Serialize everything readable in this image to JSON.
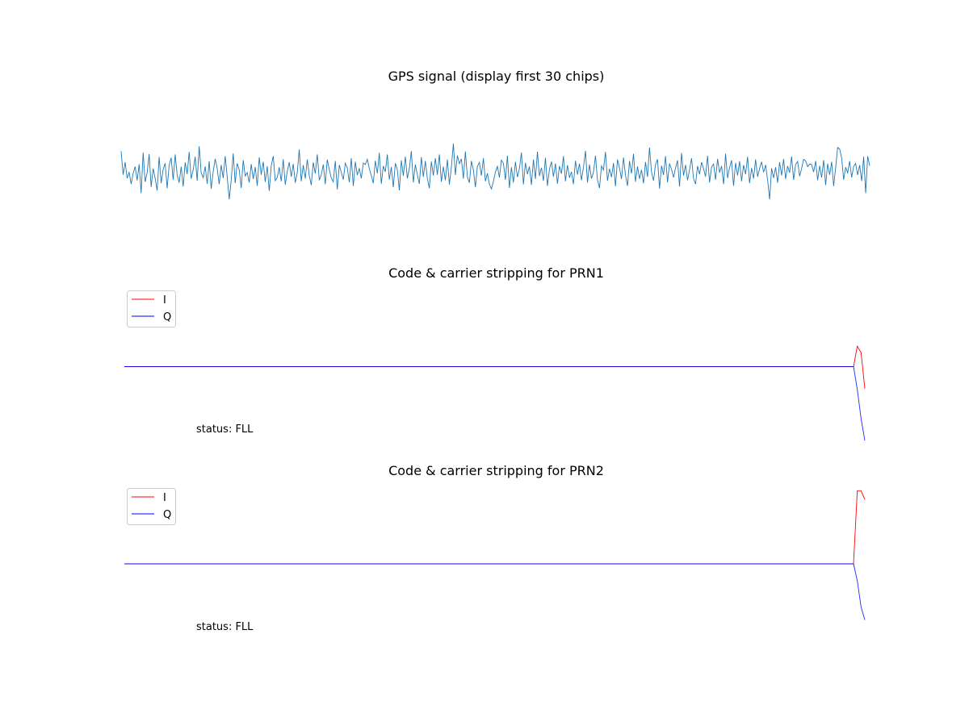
{
  "figure": {
    "background": "#ffffff"
  },
  "chart_data": [
    {
      "type": "line",
      "title": "GPS signal (display first 30 chips)",
      "axes_visible": false,
      "series": [
        {
          "color": "#1f77b4",
          "values": [
            0.95,
            -0.18,
            0.42,
            -0.35,
            -0.05,
            -0.62,
            -0.12,
            0.21,
            -0.45,
            0.32,
            -1.05,
            0.88,
            -0.52,
            -0.08,
            0.81,
            -0.76,
            0.12,
            -0.35,
            -0.93,
            0.67,
            -0.58,
            0.08,
            0.37,
            -0.82,
            0.28,
            0.63,
            -0.42,
            0.79,
            -0.18,
            -0.56,
            0.21,
            -0.74,
            0.41,
            -0.15,
            0.91,
            -0.37,
            0.05,
            0.68,
            -0.46,
            1.18,
            -0.08,
            -0.32,
            0.22,
            -0.61,
            0.47,
            -0.85,
            -0.03,
            0.58,
            0.12,
            -0.63,
            0.29,
            -0.34,
            0.71,
            -0.28,
            -1.35,
            -0.44,
            0.84,
            -0.58,
            0.37,
            0.06,
            -0.81,
            0.52,
            -0.24,
            -0.07,
            -0.55,
            0.33,
            -0.38,
            0.19,
            -0.71,
            0.65,
            -0.18,
            0.44,
            -0.52,
            0.23,
            -0.95,
            0.25,
            0.71,
            -0.46,
            -0.31,
            0.18,
            -0.49,
            0.56,
            -0.65,
            -0.02,
            0.42,
            -0.27,
            0.34,
            -0.56,
            -0.08,
            1.03,
            -0.49,
            0.28,
            -0.36,
            0.55,
            -0.21,
            -0.67,
            0.41,
            -0.12,
            0.79,
            -0.44,
            -0.18,
            0.31,
            -0.63,
            0.55,
            0.07,
            -0.33,
            -0.52,
            0.48,
            -0.88,
            0.29,
            -0.06,
            -0.41,
            0.37,
            0.15,
            -0.54,
            0.61,
            -0.72,
            0.44,
            -0.19,
            0.13,
            -0.35,
            0.38,
            0.31,
            0.56,
            0.12,
            -0.22,
            -0.58,
            0.49,
            -0.11,
            0.87,
            -0.61,
            0.24,
            -0.04,
            0.79,
            -0.41,
            0.19,
            -0.77,
            0.37,
            0.06,
            -0.92,
            0.51,
            -0.23,
            0.68,
            -0.35,
            0.12,
            0.95,
            -0.54,
            0.31,
            -0.18,
            -0.61,
            0.66,
            -0.28,
            0.48,
            -0.35,
            -0.82,
            0.45,
            -0.22,
            0.61,
            -0.18,
            0.79,
            -0.51,
            0.21,
            -0.44,
            0.55,
            -0.64,
            0.18,
            1.31,
            -0.19,
            0.74,
            0.35,
            0.58,
            -0.37,
            0.93,
            -0.29,
            -0.56,
            0.48,
            0.05,
            -0.77,
            0.21,
            0.41,
            -0.22,
            0.61,
            -0.49,
            -0.11,
            -0.63,
            -0.85,
            -0.51,
            -0.05,
            0.22,
            -0.31,
            0.52,
            0.37,
            -0.42,
            0.73,
            -0.81,
            0.18,
            -0.55,
            0.44,
            -0.29,
            0.11,
            0.88,
            -0.64,
            0.39,
            -0.15,
            0.22,
            -0.66,
            0.55,
            -0.38,
            0.92,
            -0.24,
            0.16,
            -0.47,
            0.63,
            -0.71,
            0.08,
            0.45,
            -0.27,
            0.36,
            -0.61,
            0.24,
            -0.13,
            0.71,
            -0.49,
            0.28,
            -0.32,
            -0.04,
            -0.63,
            0.49,
            -0.17,
            0.35,
            -0.44,
            0.18,
            0.96,
            -0.55,
            0.31,
            -0.36,
            -0.06,
            0.73,
            -0.42,
            -0.81,
            0.24,
            0.05,
            0.91,
            -0.47,
            0.11,
            -0.29,
            0.38,
            -0.73,
            0.55,
            0.15,
            -0.38,
            0.64,
            -0.21,
            -0.71,
            0.48,
            -0.12,
            0.82,
            -0.51,
            0.22,
            -0.37,
            0.06,
            -0.59,
            0.43,
            -0.28,
            1.12,
            -0.05,
            -0.46,
            0.31,
            0.56,
            -0.84,
            0.26,
            -0.19,
            0.71,
            -0.54,
            0.36,
            0.08,
            -0.31,
            0.14,
            0.51,
            -0.74,
            0.86,
            -0.22,
            0.29,
            -0.44,
            0.06,
            0.61,
            -0.37,
            -0.62,
            0.24,
            -0.16,
            0.42,
            0.11,
            -0.27,
            0.73,
            -0.55,
            0.19,
            0.33,
            -0.41,
            0.58,
            -0.08,
            0.24,
            -0.63,
            0.82,
            -0.34,
            0.16,
            0.51,
            -0.71,
            0.39,
            -0.21,
            0.47,
            -0.49,
            0.28,
            -0.15,
            0.68,
            -0.58,
            0.14,
            -0.36,
            0.55,
            -0.27,
            0.12,
            0.44,
            -0.06,
            0.29,
            -0.42,
            -1.35,
            0.13,
            -0.33,
            0.18,
            -0.56,
            0.42,
            -0.21,
            0.57,
            -0.38,
            0.24,
            -0.08,
            0.69,
            -0.42,
            0.31,
            0.46,
            -0.25,
            0.12,
            0.56,
            0.48,
            0.21,
            0.33,
            0.31,
            -0.05,
            0.48,
            -0.44,
            0.25,
            -0.31,
            0.52,
            -0.67,
            0.35,
            -0.18,
            0.44,
            -0.72,
            0.15,
            1.12,
            1.05,
            0.62,
            -0.41,
            0.18,
            -0.09,
            0.47,
            -0.31,
            0.22,
            0.36,
            -0.19,
            0.28,
            -0.48,
            0.68,
            -1.05,
            0.71,
            0.25
          ],
          "ylim": [
            -1.6,
            1.6
          ]
        }
      ]
    },
    {
      "type": "line",
      "title": "Code & carrier stripping for PRN1",
      "axes_visible": false,
      "annotation": "status: FLL",
      "legend": {
        "placement": "top-left",
        "entries": [
          "I",
          "Q"
        ]
      },
      "x": [
        0,
        1,
        2,
        3
      ],
      "series": [
        {
          "name": "I",
          "color": "#ff0000",
          "values": [
            0,
            0.49,
            0.34,
            -0.53
          ]
        },
        {
          "name": "Q",
          "color": "#0000ff",
          "values": [
            0,
            -0.55,
            -1.25,
            -1.78
          ]
        }
      ],
      "xlim": [
        -133.5,
        3.0
      ],
      "ylim": [
        -1.78,
        1.82
      ]
    },
    {
      "type": "line",
      "title": "Code & carrier stripping for PRN2",
      "axes_visible": false,
      "annotation": "status: FLL",
      "legend": {
        "placement": "top-left",
        "entries": [
          "I",
          "Q"
        ]
      },
      "x": [
        0,
        1,
        2,
        3
      ],
      "series": [
        {
          "name": "I",
          "color": "#ff0000",
          "values": [
            0,
            1.76,
            1.76,
            1.55
          ]
        },
        {
          "name": "Q",
          "color": "#0000ff",
          "values": [
            0,
            -0.41,
            -1.04,
            -1.35
          ]
        }
      ],
      "xlim": [
        -133.5,
        3.0
      ],
      "ylim": [
        -1.78,
        1.82
      ]
    }
  ]
}
